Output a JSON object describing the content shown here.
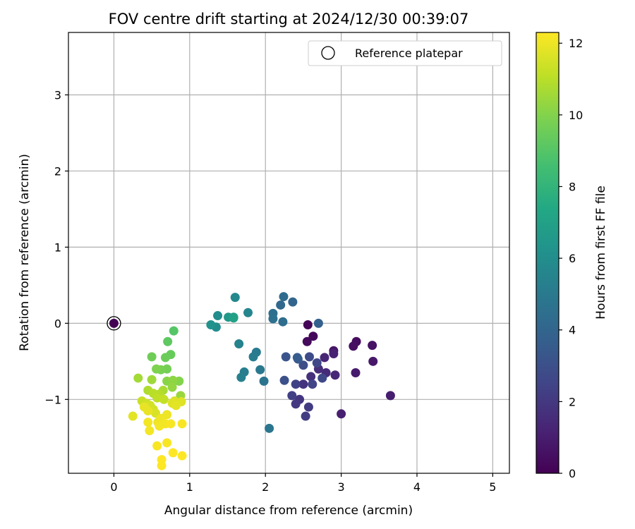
{
  "chart_data": {
    "type": "scatter",
    "title": "FOV centre drift starting at 2024/12/30 00:39:07",
    "xlabel": "Angular distance from reference (arcmin)",
    "ylabel": "Rotation from reference (arcmin)",
    "xlim": [
      -0.6,
      5.22
    ],
    "ylim": [
      -1.97,
      3.82
    ],
    "xticks": [
      "0",
      "1",
      "2",
      "3",
      "4",
      "5"
    ],
    "yticks": [
      "−1",
      "0",
      "1",
      "2",
      "3"
    ],
    "grid": true,
    "legend": {
      "position": "top-right",
      "entries": [
        "Reference platepar"
      ]
    },
    "colorbar": {
      "label": "Hours from first FF file",
      "range": [
        0,
        12.3
      ],
      "ticks": [
        "0",
        "2",
        "4",
        "6",
        "8",
        "10",
        "12"
      ],
      "colormap": "viridis"
    },
    "reference_point": {
      "x": 0.0,
      "y": 0.0,
      "label": "Reference platepar"
    },
    "points": [
      {
        "x": 2.56,
        "y": -0.02,
        "h": 0.1
      },
      {
        "x": 2.63,
        "y": -0.17,
        "h": 0.2
      },
      {
        "x": 2.55,
        "y": -0.24,
        "h": 0.3
      },
      {
        "x": 3.2,
        "y": -0.24,
        "h": 0.4
      },
      {
        "x": 3.16,
        "y": -0.3,
        "h": 0.5
      },
      {
        "x": 3.41,
        "y": -0.29,
        "h": 0.6
      },
      {
        "x": 2.9,
        "y": -0.36,
        "h": 0.7
      },
      {
        "x": 3.42,
        "y": -0.5,
        "h": 0.8
      },
      {
        "x": 3.19,
        "y": -0.65,
        "h": 0.9
      },
      {
        "x": 3.65,
        "y": -0.95,
        "h": 1.0
      },
      {
        "x": 3.0,
        "y": -1.19,
        "h": 1.1
      },
      {
        "x": 2.9,
        "y": -0.4,
        "h": 1.2
      },
      {
        "x": 2.78,
        "y": -0.45,
        "h": 1.3
      },
      {
        "x": 2.92,
        "y": -0.68,
        "h": 1.4
      },
      {
        "x": 2.8,
        "y": -0.65,
        "h": 1.5
      },
      {
        "x": 2.7,
        "y": -0.6,
        "h": 1.6
      },
      {
        "x": 2.6,
        "y": -0.7,
        "h": 1.7
      },
      {
        "x": 2.5,
        "y": -0.8,
        "h": 1.8
      },
      {
        "x": 2.45,
        "y": -1.0,
        "h": 1.9
      },
      {
        "x": 2.4,
        "y": -1.06,
        "h": 2.0
      },
      {
        "x": 2.57,
        "y": -1.1,
        "h": 2.1
      },
      {
        "x": 2.53,
        "y": -1.22,
        "h": 2.2
      },
      {
        "x": 2.35,
        "y": -0.95,
        "h": 2.3
      },
      {
        "x": 2.4,
        "y": -0.8,
        "h": 2.4
      },
      {
        "x": 2.62,
        "y": -0.8,
        "h": 2.5
      },
      {
        "x": 2.68,
        "y": -0.52,
        "h": 2.6
      },
      {
        "x": 2.75,
        "y": -0.72,
        "h": 2.7
      },
      {
        "x": 2.58,
        "y": -0.44,
        "h": 2.8
      },
      {
        "x": 2.5,
        "y": -0.55,
        "h": 2.9
      },
      {
        "x": 2.25,
        "y": -0.75,
        "h": 3.0
      },
      {
        "x": 2.27,
        "y": -0.44,
        "h": 3.2
      },
      {
        "x": 2.43,
        "y": -0.47,
        "h": 3.4
      },
      {
        "x": 2.42,
        "y": -0.45,
        "h": 3.6
      },
      {
        "x": 2.7,
        "y": 0.0,
        "h": 3.8
      },
      {
        "x": 2.36,
        "y": 0.28,
        "h": 4.0
      },
      {
        "x": 2.2,
        "y": 0.24,
        "h": 4.2
      },
      {
        "x": 2.24,
        "y": 0.35,
        "h": 4.3
      },
      {
        "x": 2.23,
        "y": 0.02,
        "h": 4.4
      },
      {
        "x": 2.1,
        "y": 0.13,
        "h": 4.5
      },
      {
        "x": 2.1,
        "y": 0.06,
        "h": 4.6
      },
      {
        "x": 1.98,
        "y": -0.76,
        "h": 4.7
      },
      {
        "x": 2.05,
        "y": -1.38,
        "h": 4.8
      },
      {
        "x": 1.93,
        "y": -0.61,
        "h": 4.9
      },
      {
        "x": 1.88,
        "y": -0.38,
        "h": 5.0
      },
      {
        "x": 1.84,
        "y": -0.44,
        "h": 5.1
      },
      {
        "x": 1.72,
        "y": -0.64,
        "h": 5.2
      },
      {
        "x": 1.68,
        "y": -0.71,
        "h": 5.3
      },
      {
        "x": 1.65,
        "y": -0.27,
        "h": 5.4
      },
      {
        "x": 1.77,
        "y": 0.14,
        "h": 5.6
      },
      {
        "x": 1.6,
        "y": 0.34,
        "h": 5.7
      },
      {
        "x": 1.37,
        "y": 0.1,
        "h": 5.9
      },
      {
        "x": 1.35,
        "y": -0.05,
        "h": 6.0
      },
      {
        "x": 1.28,
        "y": -0.02,
        "h": 6.2
      },
      {
        "x": 1.51,
        "y": 0.08,
        "h": 6.5
      },
      {
        "x": 1.58,
        "y": 0.08,
        "h": 6.8
      },
      {
        "x": 1.58,
        "y": 0.07,
        "h": 7.0
      },
      {
        "x": 0.79,
        "y": -0.1,
        "h": 9.0
      },
      {
        "x": 0.71,
        "y": -0.24,
        "h": 9.2
      },
      {
        "x": 0.75,
        "y": -0.41,
        "h": 9.4
      },
      {
        "x": 0.68,
        "y": -0.45,
        "h": 9.5
      },
      {
        "x": 0.5,
        "y": -0.44,
        "h": 9.6
      },
      {
        "x": 0.7,
        "y": -0.6,
        "h": 9.7
      },
      {
        "x": 0.62,
        "y": -0.61,
        "h": 9.8
      },
      {
        "x": 0.56,
        "y": -0.6,
        "h": 9.9
      },
      {
        "x": 0.86,
        "y": -0.76,
        "h": 10.0
      },
      {
        "x": 0.7,
        "y": -0.76,
        "h": 10.1
      },
      {
        "x": 0.78,
        "y": -0.75,
        "h": 10.2
      },
      {
        "x": 0.77,
        "y": -0.84,
        "h": 10.3
      },
      {
        "x": 0.88,
        "y": -0.95,
        "h": 10.4
      },
      {
        "x": 0.5,
        "y": -0.74,
        "h": 10.5
      },
      {
        "x": 0.32,
        "y": -0.72,
        "h": 10.6
      },
      {
        "x": 0.65,
        "y": -0.88,
        "h": 10.7
      },
      {
        "x": 0.45,
        "y": -0.88,
        "h": 10.8
      },
      {
        "x": 0.6,
        "y": -0.93,
        "h": 10.9
      },
      {
        "x": 0.52,
        "y": -0.92,
        "h": 11.0
      },
      {
        "x": 0.57,
        "y": -0.98,
        "h": 11.1
      },
      {
        "x": 0.66,
        "y": -1.0,
        "h": 11.2
      },
      {
        "x": 0.37,
        "y": -1.02,
        "h": 11.3
      },
      {
        "x": 0.43,
        "y": -1.05,
        "h": 11.4
      },
      {
        "x": 0.48,
        "y": -1.08,
        "h": 11.5
      },
      {
        "x": 0.52,
        "y": -1.13,
        "h": 11.5
      },
      {
        "x": 0.55,
        "y": -1.18,
        "h": 11.6
      },
      {
        "x": 0.8,
        "y": -1.02,
        "h": 11.6
      },
      {
        "x": 0.89,
        "y": -1.03,
        "h": 11.7
      },
      {
        "x": 0.77,
        "y": -1.05,
        "h": 11.7
      },
      {
        "x": 0.82,
        "y": -1.08,
        "h": 11.8
      },
      {
        "x": 0.25,
        "y": -1.22,
        "h": 11.8
      },
      {
        "x": 0.45,
        "y": -1.15,
        "h": 11.9
      },
      {
        "x": 0.4,
        "y": -1.1,
        "h": 11.9
      },
      {
        "x": 0.7,
        "y": -1.2,
        "h": 12.0
      },
      {
        "x": 0.62,
        "y": -1.25,
        "h": 12.0
      },
      {
        "x": 0.58,
        "y": -1.3,
        "h": 12.0
      },
      {
        "x": 0.45,
        "y": -1.3,
        "h": 12.1
      },
      {
        "x": 0.47,
        "y": -1.41,
        "h": 12.1
      },
      {
        "x": 0.6,
        "y": -1.35,
        "h": 12.1
      },
      {
        "x": 0.68,
        "y": -1.32,
        "h": 12.1
      },
      {
        "x": 0.75,
        "y": -1.32,
        "h": 12.2
      },
      {
        "x": 0.9,
        "y": -1.32,
        "h": 12.2
      },
      {
        "x": 0.57,
        "y": -1.61,
        "h": 12.2
      },
      {
        "x": 0.7,
        "y": -1.57,
        "h": 12.2
      },
      {
        "x": 0.78,
        "y": -1.7,
        "h": 12.3
      },
      {
        "x": 0.63,
        "y": -1.79,
        "h": 12.3
      },
      {
        "x": 0.63,
        "y": -1.87,
        "h": 12.3
      },
      {
        "x": 0.9,
        "y": -1.74,
        "h": 12.3
      }
    ]
  }
}
